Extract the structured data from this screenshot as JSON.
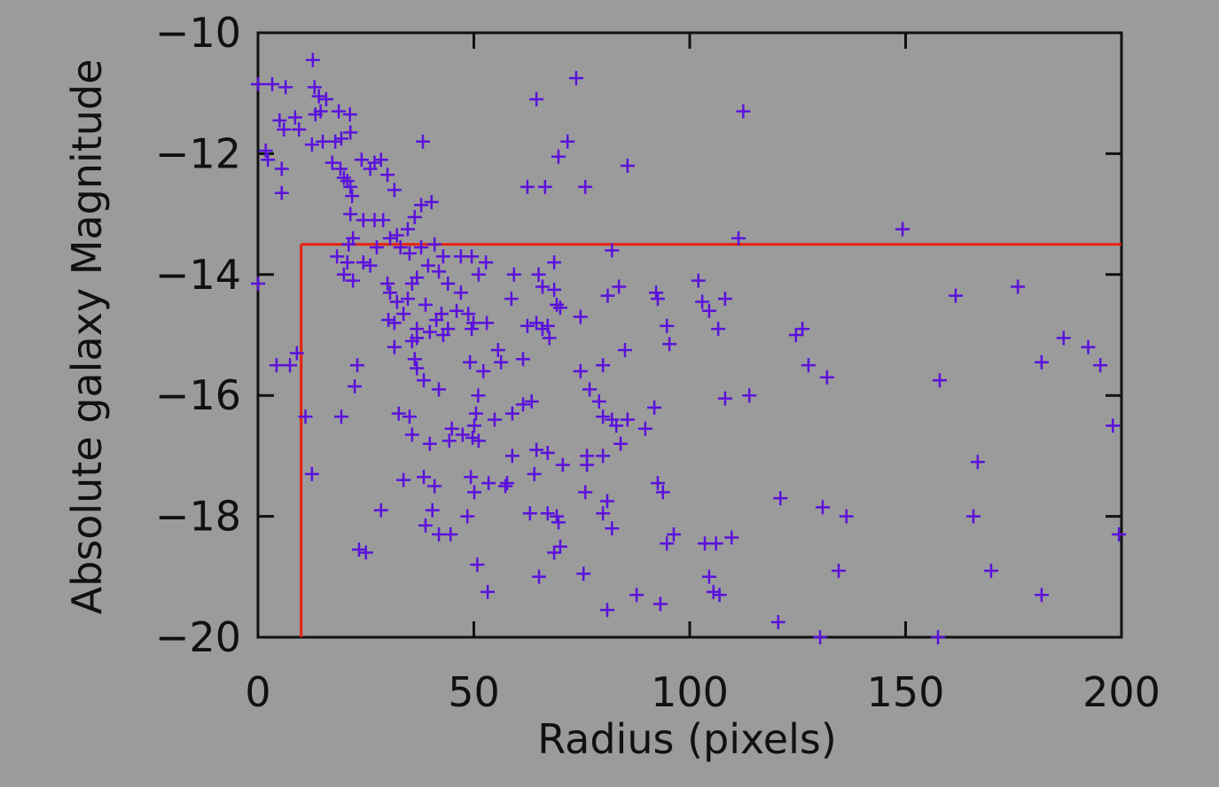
{
  "chart_data": {
    "type": "scatter",
    "x_label": "Radius (pixels)",
    "y_label": "Absolute galaxy Magnitude",
    "xlim": [
      0,
      200
    ],
    "ylim": [
      -20,
      -10
    ],
    "xticks": [
      0,
      50,
      100,
      150,
      200
    ],
    "yticks": [
      {
        "value": -10,
        "label": "−10"
      },
      {
        "value": -12,
        "label": "−12"
      },
      {
        "value": -14,
        "label": "−14"
      },
      {
        "value": -16,
        "label": "−16"
      },
      {
        "value": -18,
        "label": "−18"
      },
      {
        "value": -20,
        "label": "−20"
      }
    ],
    "color": "#5a12dc",
    "cut": {
      "x": 10,
      "y": -13.5,
      "color": "#e8200e"
    },
    "x": [
      0,
      3.3,
      6.4,
      12.7,
      0,
      1.8,
      2.3,
      5,
      6,
      5.5,
      5.5,
      8.6,
      9.5,
      13.1,
      14.1,
      15.8,
      13.3,
      14.5,
      12.5,
      15,
      18.7,
      21.3,
      17.9,
      19.3,
      21.4,
      17.2,
      19.1,
      19.9,
      20.7,
      21.4,
      21.8,
      24,
      26,
      27,
      28.5,
      30,
      31.6,
      38.2,
      40.2,
      37.8,
      36.3,
      34.7,
      32.2,
      29,
      27,
      24.4,
      21.4,
      22,
      21,
      18.3,
      20.7,
      19.9,
      22,
      24.4,
      26,
      27.5,
      30.6,
      33,
      35.1,
      37.8,
      40.9,
      42.9,
      47,
      49.5,
      52.8,
      51.1,
      30,
      30.6,
      32.2,
      34.7,
      35.7,
      36.8,
      39.4,
      41.9,
      44,
      47,
      46,
      42.5,
      38.8,
      41.3,
      30.2,
      31.6,
      33.7,
      36.8,
      39.8,
      42.9,
      44,
      48.7,
      49.9,
      49.5,
      53,
      31.6,
      35.7,
      36.3,
      36.8,
      38.4,
      41.9,
      36.8,
      49.1,
      52.2,
      55.6,
      56.3,
      61.4,
      59.3,
      65,
      65.9,
      68.6,
      68.6,
      69.2,
      70,
      74.7,
      62.4,
      64.5,
      65.9,
      67.5,
      67.1,
      58.7,
      62.4,
      66.5,
      75.8,
      69.6,
      71.7,
      73.7,
      64.5,
      85.6,
      112.4,
      111.3,
      149.3,
      82,
      81,
      83.6,
      92.2,
      92.6,
      102,
      102.9,
      104.5,
      108.2,
      106.6,
      94.7,
      95.3,
      85,
      79.9,
      74.7,
      76.8,
      79,
      79.9,
      82,
      83,
      85.6,
      84,
      89.7,
      91.8,
      108.2,
      113.8,
      63.4,
      61.4,
      58.9,
      54.8,
      51,
      50.5,
      50.1,
      44.9,
      47.4,
      49.7,
      51.1,
      44.3,
      39.8,
      35.7,
      32.6,
      35.1,
      19.3,
      11,
      22.4,
      23,
      9,
      4.3,
      7.4,
      12.5,
      33.7,
      38.4,
      40.9,
      49.3,
      50.1,
      53.4,
      57.3,
      57.7,
      64,
      64.5,
      67.1,
      70.6,
      76.2,
      76.2,
      79.9,
      58.9,
      75.8,
      80.9,
      79.9,
      82,
      92.6,
      93.8,
      67.1,
      63,
      69.2,
      69.6,
      70,
      68.6,
      65.1,
      50.8,
      53.2,
      48.5,
      40.4,
      38.8,
      41.9,
      44.6,
      28.5,
      23.4,
      25,
      75.4,
      80.9,
      87.7,
      93.2,
      94.7,
      96.3,
      103.5,
      106.1,
      109.7,
      104.5,
      105.5,
      106.9,
      120.5,
      121,
      130.2,
      130.8,
      136.3,
      134.5,
      157.5,
      165.7,
      166.7,
      169.8,
      181.5,
      199.4,
      198,
      157.9,
      161.6,
      176,
      181.5,
      186.6,
      192.3,
      195.1,
      131.8,
      127.5,
      124.6,
      126.1
    ],
    "values": [
      -10.85,
      -10.85,
      -10.9,
      -10.45,
      -14.15,
      -11.95,
      -12.1,
      -11.45,
      -11.6,
      -12.25,
      -12.65,
      -11.4,
      -11.6,
      -10.9,
      -11.05,
      -11.1,
      -11.35,
      -11.3,
      -11.85,
      -11.8,
      -11.3,
      -11.35,
      -11.8,
      -11.75,
      -11.65,
      -12.15,
      -12.25,
      -12.4,
      -12.45,
      -12.55,
      -12.7,
      -12.1,
      -12.25,
      -12.15,
      -12.1,
      -12.35,
      -12.6,
      -11.8,
      -12.8,
      -12.85,
      -13.05,
      -13.25,
      -13.35,
      -13.1,
      -13.1,
      -13.1,
      -13,
      -13.4,
      -13.5,
      -13.7,
      -13.8,
      -14,
      -14.1,
      -13.8,
      -13.85,
      -13.55,
      -13.4,
      -13.55,
      -13.65,
      -13.55,
      -13.5,
      -13.7,
      -13.7,
      -13.7,
      -13.8,
      -14,
      -14.15,
      -14.3,
      -14.45,
      -14.4,
      -14.15,
      -14.05,
      -13.85,
      -13.95,
      -14.15,
      -14.3,
      -14.6,
      -14.65,
      -14.5,
      -14.75,
      -14.75,
      -14.8,
      -14.65,
      -14.9,
      -14.95,
      -15,
      -14.9,
      -14.65,
      -14.8,
      -14.9,
      -14.8,
      -15.2,
      -15.1,
      -15.4,
      -15.55,
      -15.75,
      -15.9,
      -15.05,
      -15.45,
      -15.6,
      -15.25,
      -15.45,
      -15.4,
      -14,
      -14,
      -14.2,
      -13.8,
      -14.25,
      -14.5,
      -14.55,
      -14.7,
      -14.85,
      -14.8,
      -14.9,
      -15.05,
      -14.85,
      -14.4,
      -12.55,
      -12.55,
      -12.55,
      -12.05,
      -11.8,
      -10.75,
      -11.1,
      -12.2,
      -11.3,
      -13.4,
      -13.25,
      -13.6,
      -14.35,
      -14.2,
      -14.3,
      -14.4,
      -14.1,
      -14.45,
      -14.6,
      -14.4,
      -14.9,
      -14.85,
      -15.15,
      -15.25,
      -15.5,
      -15.6,
      -15.9,
      -16.1,
      -16.35,
      -16.4,
      -16.5,
      -16.4,
      -16.8,
      -16.55,
      -16.2,
      -16.05,
      -16,
      -16.1,
      -16.15,
      -16.3,
      -16.4,
      -16,
      -16.3,
      -16.5,
      -16.55,
      -16.65,
      -16.7,
      -16.75,
      -16.75,
      -16.8,
      -16.65,
      -16.3,
      -16.35,
      -16.35,
      -16.35,
      -15.85,
      -15.5,
      -15.3,
      -15.5,
      -15.5,
      -17.3,
      -17.4,
      -17.35,
      -17.5,
      -17.35,
      -17.6,
      -17.45,
      -17.5,
      -17.45,
      -17.3,
      -16.9,
      -16.95,
      -17.15,
      -17,
      -17.15,
      -17,
      -17,
      -17.6,
      -17.75,
      -17.95,
      -18.2,
      -17.45,
      -17.6,
      -17.95,
      -17.95,
      -18,
      -18.1,
      -18.5,
      -18.6,
      -19,
      -18.8,
      -19.25,
      -18,
      -17.9,
      -18.15,
      -18.3,
      -18.3,
      -17.9,
      -18.55,
      -18.6,
      -18.95,
      -19.55,
      -19.3,
      -19.45,
      -18.45,
      -18.3,
      -18.45,
      -18.45,
      -18.35,
      -19,
      -19.25,
      -19.3,
      -19.75,
      -17.7,
      -20,
      -17.85,
      -18,
      -18.9,
      -20,
      -18,
      -17.1,
      -18.9,
      -19.3,
      -18.3,
      -16.5,
      -15.75,
      -14.35,
      -14.2,
      -15.45,
      -15.05,
      -15.2,
      -15.5,
      -15.7,
      -15.5,
      -15,
      -14.9
    ]
  }
}
